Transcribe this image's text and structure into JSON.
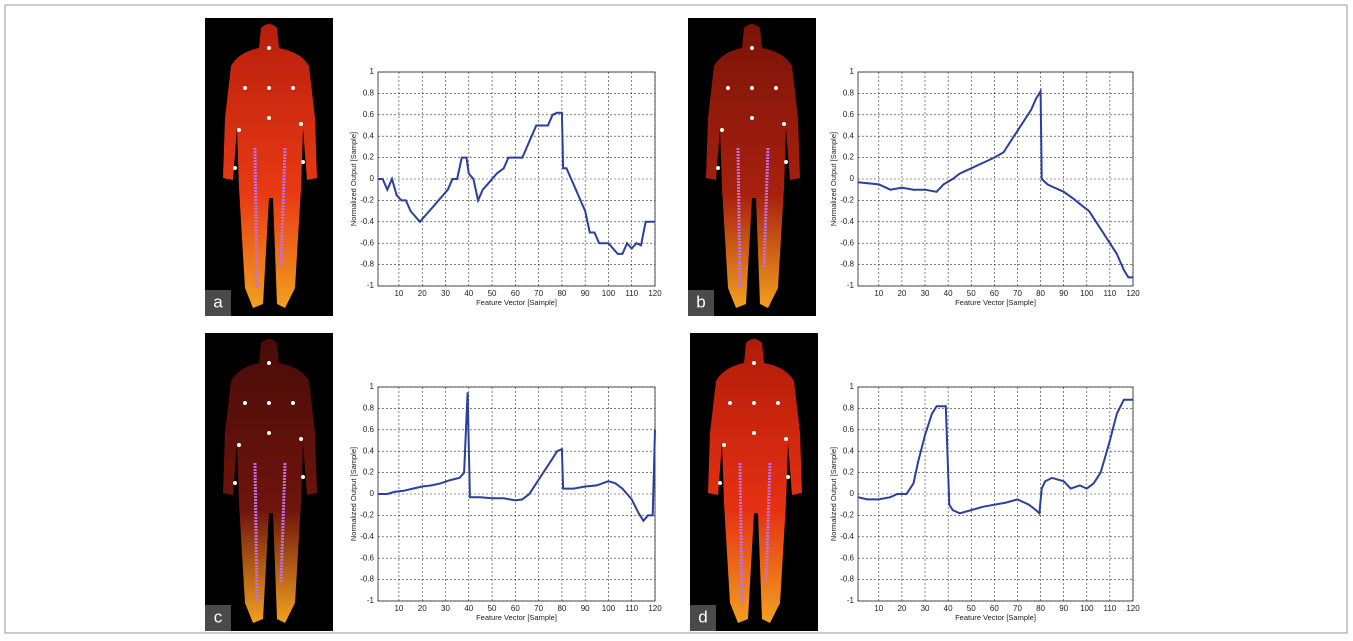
{
  "chart_data": [
    {
      "type": "line",
      "panel_label": "a",
      "xlabel": "Feature Vector [Sample]",
      "ylabel": "Normalized Output [Sample]",
      "xlim": [
        1,
        120
      ],
      "ylim": [
        -1,
        1
      ],
      "xticks": [
        10,
        20,
        30,
        40,
        50,
        60,
        70,
        80,
        90,
        100,
        110,
        120
      ],
      "yticks": [
        -1,
        -0.8,
        -0.6,
        -0.4,
        -0.2,
        0,
        0.2,
        0.4,
        0.6,
        0.8,
        1
      ],
      "grid": true,
      "x": [
        1,
        3,
        5,
        7,
        9,
        11,
        13,
        15,
        17,
        19,
        21,
        23,
        25,
        27,
        29,
        31,
        33,
        35,
        37,
        39,
        40,
        42,
        44,
        46,
        48,
        50,
        52,
        55,
        57,
        60,
        63,
        65,
        67,
        69,
        72,
        74,
        76,
        78,
        80,
        80.5,
        82,
        84,
        86,
        88,
        90,
        92,
        94,
        96,
        98,
        100,
        102,
        104,
        106,
        108,
        110,
        112,
        114,
        116,
        120
      ],
      "series": [
        {
          "color": "#2b3f9e",
          "values": [
            0,
            0,
            -0.1,
            0,
            -0.15,
            -0.2,
            -0.2,
            -0.3,
            -0.35,
            -0.4,
            -0.35,
            -0.3,
            -0.25,
            -0.2,
            -0.15,
            -0.1,
            0,
            0,
            0.2,
            0.2,
            0.05,
            0,
            -0.2,
            -0.1,
            -0.05,
            0,
            0.05,
            0.1,
            0.2,
            0.2,
            0.2,
            0.3,
            0.4,
            0.5,
            0.5,
            0.5,
            0.6,
            0.62,
            0.62,
            0.1,
            0.1,
            0,
            -0.1,
            -0.2,
            -0.3,
            -0.5,
            -0.5,
            -0.6,
            -0.6,
            -0.6,
            -0.65,
            -0.7,
            -0.7,
            -0.6,
            -0.65,
            -0.6,
            -0.62,
            -0.4,
            -0.4
          ]
        }
      ]
    },
    {
      "type": "line",
      "panel_label": "b",
      "xlabel": "Feature Vector [Sample]",
      "ylabel": "Normalized Output [Sample]",
      "xlim": [
        1,
        120
      ],
      "ylim": [
        -1,
        1
      ],
      "xticks": [
        10,
        20,
        30,
        40,
        50,
        60,
        70,
        80,
        90,
        100,
        110,
        120
      ],
      "yticks": [
        -1,
        -0.8,
        -0.6,
        -0.4,
        -0.2,
        0,
        0.2,
        0.4,
        0.6,
        0.8,
        1
      ],
      "grid": true,
      "x": [
        1,
        10,
        15,
        20,
        25,
        30,
        35,
        38,
        42,
        45,
        50,
        55,
        60,
        64,
        67,
        70,
        73,
        76,
        78,
        80,
        80.5,
        83,
        86,
        90,
        94,
        98,
        101,
        104,
        107,
        110,
        113,
        116,
        118,
        120
      ],
      "series": [
        {
          "color": "#2b3f9e",
          "values": [
            -0.03,
            -0.05,
            -0.1,
            -0.08,
            -0.1,
            -0.1,
            -0.12,
            -0.05,
            0,
            0.05,
            0.1,
            0.15,
            0.2,
            0.25,
            0.35,
            0.45,
            0.55,
            0.65,
            0.75,
            0.82,
            0,
            -0.05,
            -0.08,
            -0.12,
            -0.18,
            -0.25,
            -0.3,
            -0.4,
            -0.5,
            -0.6,
            -0.7,
            -0.85,
            -0.92,
            -0.92
          ]
        }
      ]
    },
    {
      "type": "line",
      "panel_label": "c",
      "xlabel": "Feature Vector [Sample]",
      "ylabel": "Normalized Output [Sample]",
      "xlim": [
        1,
        120
      ],
      "ylim": [
        -1,
        1
      ],
      "xticks": [
        10,
        20,
        30,
        40,
        50,
        60,
        70,
        80,
        90,
        100,
        110,
        120
      ],
      "yticks": [
        -1,
        -0.8,
        -0.6,
        -0.4,
        -0.2,
        0,
        0.2,
        0.4,
        0.6,
        0.8,
        1
      ],
      "grid": true,
      "x": [
        1,
        5,
        8,
        12,
        16,
        20,
        24,
        28,
        32,
        36,
        38,
        39.5,
        40.5,
        45,
        50,
        55,
        60,
        63,
        66,
        69,
        72,
        75,
        78,
        80,
        80.5,
        85,
        90,
        95,
        100,
        103,
        106,
        110,
        113,
        115,
        117,
        119,
        120
      ],
      "series": [
        {
          "color": "#2b3f9e",
          "values": [
            0,
            0,
            0.02,
            0.03,
            0.05,
            0.07,
            0.08,
            0.1,
            0.13,
            0.15,
            0.2,
            0.95,
            -0.03,
            -0.03,
            -0.04,
            -0.04,
            -0.06,
            -0.05,
            0,
            0.1,
            0.2,
            0.3,
            0.4,
            0.42,
            0.05,
            0.05,
            0.07,
            0.08,
            0.12,
            0.1,
            0.05,
            -0.05,
            -0.18,
            -0.25,
            -0.2,
            -0.2,
            0.6
          ]
        }
      ]
    },
    {
      "type": "line",
      "panel_label": "d",
      "xlabel": "Feature Vector [Sample]",
      "ylabel": "Normalized Output [Sample]",
      "xlim": [
        1,
        120
      ],
      "ylim": [
        -1,
        1
      ],
      "xticks": [
        10,
        20,
        30,
        40,
        50,
        60,
        70,
        80,
        90,
        100,
        110,
        120
      ],
      "yticks": [
        -1,
        -0.8,
        -0.6,
        -0.4,
        -0.2,
        0,
        0.2,
        0.4,
        0.6,
        0.8,
        1
      ],
      "grid": true,
      "x": [
        1,
        5,
        10,
        15,
        18,
        22,
        25,
        27,
        30,
        33,
        35,
        39,
        40.5,
        42,
        45,
        50,
        55,
        60,
        65,
        70,
        75,
        78,
        79.5,
        80.5,
        82,
        85,
        90,
        93,
        97,
        100,
        103,
        106,
        108,
        110,
        113,
        116,
        120
      ],
      "series": [
        {
          "color": "#2b3f9e",
          "values": [
            -0.03,
            -0.05,
            -0.05,
            -0.03,
            0,
            0,
            0.1,
            0.3,
            0.55,
            0.75,
            0.82,
            0.82,
            -0.1,
            -0.15,
            -0.18,
            -0.15,
            -0.12,
            -0.1,
            -0.08,
            -0.05,
            -0.1,
            -0.15,
            -0.18,
            0.05,
            0.12,
            0.15,
            0.12,
            0.05,
            0.08,
            0.05,
            0.1,
            0.2,
            0.35,
            0.5,
            0.75,
            0.88,
            0.88
          ]
        }
      ]
    }
  ]
}
